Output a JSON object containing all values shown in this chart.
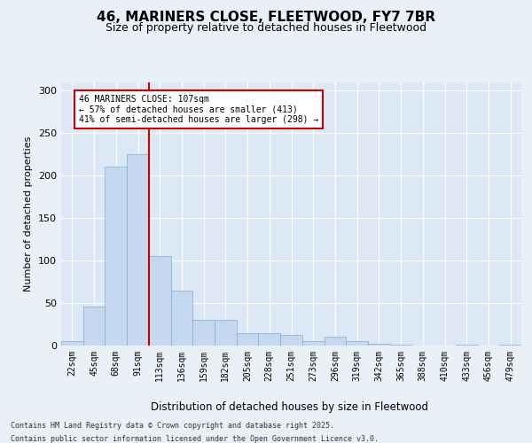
{
  "title1": "46, MARINERS CLOSE, FLEETWOOD, FY7 7BR",
  "title2": "Size of property relative to detached houses in Fleetwood",
  "xlabel": "Distribution of detached houses by size in Fleetwood",
  "ylabel": "Number of detached properties",
  "bins": [
    "22sqm",
    "45sqm",
    "68sqm",
    "91sqm",
    "113sqm",
    "136sqm",
    "159sqm",
    "182sqm",
    "205sqm",
    "228sqm",
    "251sqm",
    "273sqm",
    "296sqm",
    "319sqm",
    "342sqm",
    "365sqm",
    "388sqm",
    "410sqm",
    "433sqm",
    "456sqm",
    "479sqm"
  ],
  "values": [
    5,
    46,
    210,
    225,
    105,
    65,
    30,
    30,
    15,
    15,
    12,
    5,
    10,
    5,
    2,
    1,
    0,
    0,
    1,
    0,
    1
  ],
  "bar_color": "#c5d8f0",
  "bar_edge_color": "#7aadd4",
  "vline_color": "#cc0000",
  "vline_x_index": 4,
  "annotation_text": "46 MARINERS CLOSE: 107sqm\n← 57% of detached houses are smaller (413)\n41% of semi-detached houses are larger (298) →",
  "annotation_box_color": "#cc0000",
  "footer1": "Contains HM Land Registry data © Crown copyright and database right 2025.",
  "footer2": "Contains public sector information licensed under the Open Government Licence v3.0.",
  "bg_color": "#eaf0f8",
  "plot_bg_color": "#dce8f5",
  "grid_color": "#ffffff",
  "ylim": [
    0,
    310
  ],
  "yticks": [
    0,
    50,
    100,
    150,
    200,
    250,
    300
  ]
}
